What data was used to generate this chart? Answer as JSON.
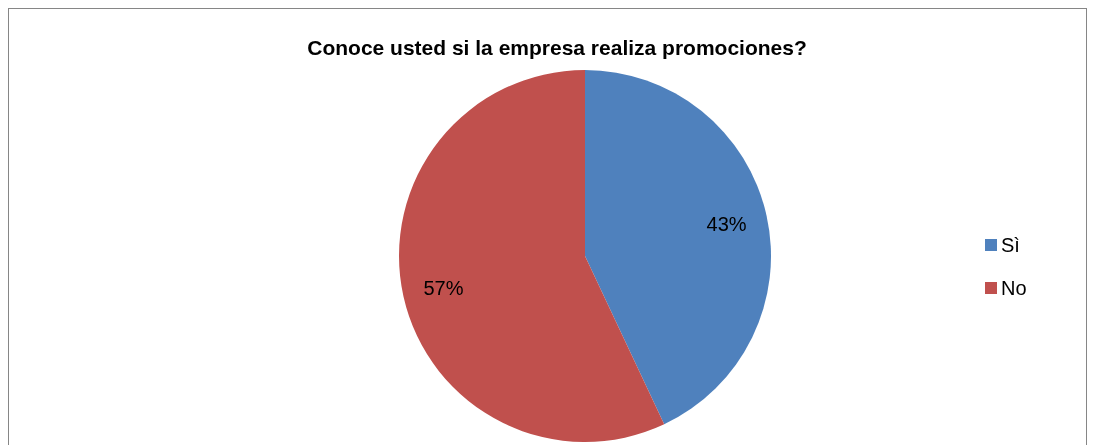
{
  "chart_data": {
    "type": "pie",
    "title": "Conoce usted si la empresa realiza promociones?",
    "categories": [
      "Sì",
      "No"
    ],
    "values": [
      43,
      57
    ],
    "colors": [
      "#4f81bd",
      "#c0504d"
    ],
    "value_labels": [
      "43%",
      "57%"
    ],
    "legend": "right"
  }
}
